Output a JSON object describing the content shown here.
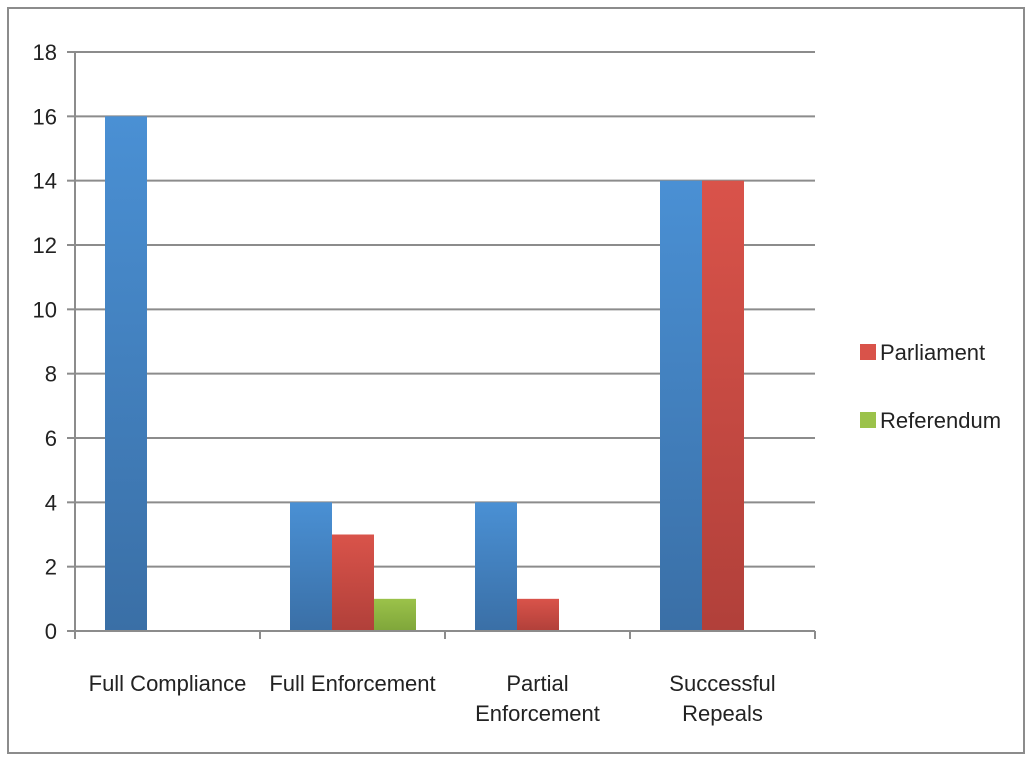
{
  "chart_data": {
    "type": "bar",
    "categories": [
      [
        "Full Compliance"
      ],
      [
        "Full Enforcement"
      ],
      [
        "Partial",
        "Enforcement"
      ],
      [
        "Successful",
        "Repeals"
      ]
    ],
    "series": [
      {
        "color": "#4a90d4",
        "color_dark": "#3a6fa6",
        "values": [
          16,
          4,
          4,
          14
        ]
      },
      {
        "name": "Parliament",
        "color": "#d9534a",
        "color_dark": "#b1403a",
        "values": [
          0,
          3,
          1,
          14
        ]
      },
      {
        "name": "Referendum",
        "color": "#9bc24a",
        "color_dark": "#7fa63a",
        "values": [
          0,
          1,
          0,
          0
        ]
      }
    ],
    "ylim": [
      0,
      18
    ],
    "yticks": [
      0,
      2,
      4,
      6,
      8,
      10,
      12,
      14,
      16,
      18
    ],
    "grid": true,
    "legend": {
      "placement": "right",
      "entries": [
        "Parliament",
        "Referendum"
      ]
    },
    "title": "",
    "xlabel": "",
    "ylabel": ""
  }
}
